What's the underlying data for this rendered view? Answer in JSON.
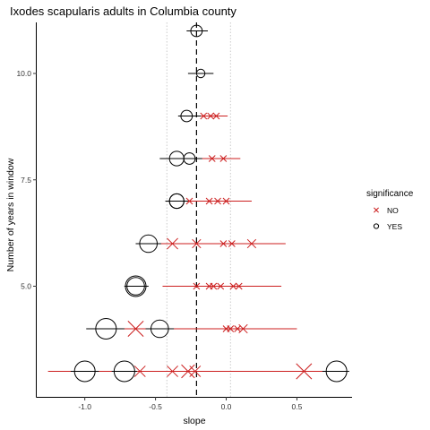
{
  "chart_data": {
    "type": "scatter",
    "title": "Ixodes scapularis adults in Columbia county",
    "xlabel": "slope",
    "ylabel": "Number of years in window",
    "xlim": [
      -1.34,
      0.89
    ],
    "ylim": [
      2.4,
      11.2
    ],
    "x_ticks": [
      -1.0,
      -0.5,
      0.0,
      0.5
    ],
    "x_tick_labels": [
      "-1.0",
      "-0.5",
      "0.0",
      "0.5"
    ],
    "y_ticks": [
      5.0,
      7.5,
      10.0
    ],
    "y_tick_labels": [
      "5.0",
      "7.5",
      "10.0"
    ],
    "grid": false,
    "reference_line": {
      "x": -0.21,
      "style": "dashed"
    },
    "guide_lines": {
      "x": [
        -0.42,
        0.03
      ],
      "style": "dotted"
    },
    "legend": {
      "title": "significance",
      "position": "right",
      "entries": [
        {
          "label": "NO",
          "marker": "cross",
          "color": "#cc1f1f"
        },
        {
          "label": "YES",
          "marker": "circle",
          "color": "#000000"
        }
      ]
    },
    "series": [
      {
        "name": "NO",
        "marker": "cross",
        "color": "#cc1f1f",
        "points": [
          {
            "y": 3,
            "x": -0.61,
            "lo": -1.26,
            "hi": 0.05,
            "size": 3
          },
          {
            "y": 3,
            "x": -0.38,
            "lo": -0.98,
            "hi": 0.24,
            "size": 3
          },
          {
            "y": 3,
            "x": -0.27,
            "lo": -0.84,
            "hi": 0.31,
            "size": 4
          },
          {
            "y": 3,
            "x": -0.22,
            "lo": -0.8,
            "hi": 0.36,
            "size": 3
          },
          {
            "y": 3,
            "x": 0.55,
            "lo": 0.26,
            "hi": 0.84,
            "size": 5
          },
          {
            "y": 4,
            "x": -0.64,
            "lo": -0.96,
            "hi": -0.32,
            "size": 5
          },
          {
            "y": 4,
            "x": 0.0,
            "lo": -0.37,
            "hi": 0.37,
            "size": 1
          },
          {
            "y": 4,
            "x": 0.03,
            "lo": -0.35,
            "hi": 0.41,
            "size": 1
          },
          {
            "y": 4,
            "x": 0.08,
            "lo": -0.29,
            "hi": 0.46,
            "size": 1
          },
          {
            "y": 4,
            "x": 0.12,
            "lo": -0.26,
            "hi": 0.5,
            "size": 2
          },
          {
            "y": 5,
            "x": -0.21,
            "lo": -0.45,
            "hi": 0.03,
            "size": 1
          },
          {
            "y": 5,
            "x": -0.12,
            "lo": -0.42,
            "hi": 0.18,
            "size": 1
          },
          {
            "y": 5,
            "x": -0.09,
            "lo": -0.37,
            "hi": 0.2,
            "size": 1
          },
          {
            "y": 5,
            "x": -0.04,
            "lo": -0.35,
            "hi": 0.28,
            "size": 1
          },
          {
            "y": 5,
            "x": 0.05,
            "lo": -0.25,
            "hi": 0.37,
            "size": 1
          },
          {
            "y": 5,
            "x": 0.09,
            "lo": -0.21,
            "hi": 0.39,
            "size": 1
          },
          {
            "y": 6,
            "x": -0.38,
            "lo": -0.56,
            "hi": -0.19,
            "size": 3
          },
          {
            "y": 6,
            "x": -0.21,
            "lo": -0.41,
            "hi": 0.0,
            "size": 2
          },
          {
            "y": 6,
            "x": -0.02,
            "lo": -0.25,
            "hi": 0.21,
            "size": 1
          },
          {
            "y": 6,
            "x": 0.04,
            "lo": -0.2,
            "hi": 0.28,
            "size": 1
          },
          {
            "y": 6,
            "x": 0.18,
            "lo": -0.08,
            "hi": 0.42,
            "size": 2
          },
          {
            "y": 7,
            "x": -0.26,
            "lo": -0.38,
            "hi": -0.14,
            "size": 1
          },
          {
            "y": 7,
            "x": -0.12,
            "lo": -0.29,
            "hi": 0.05,
            "size": 1
          },
          {
            "y": 7,
            "x": -0.06,
            "lo": -0.23,
            "hi": 0.12,
            "size": 1
          },
          {
            "y": 7,
            "x": 0.0,
            "lo": -0.18,
            "hi": 0.18,
            "size": 1
          },
          {
            "y": 8,
            "x": -0.1,
            "lo": -0.21,
            "hi": 0.02,
            "size": 1
          },
          {
            "y": 8,
            "x": -0.02,
            "lo": -0.13,
            "hi": 0.1,
            "size": 1
          },
          {
            "y": 9,
            "x": -0.16,
            "lo": -0.24,
            "hi": -0.08,
            "size": 1
          },
          {
            "y": 9,
            "x": -0.11,
            "lo": -0.19,
            "hi": -0.03,
            "size": 1
          },
          {
            "y": 9,
            "x": -0.07,
            "lo": -0.15,
            "hi": 0.01,
            "size": 1
          }
        ]
      },
      {
        "name": "YES",
        "marker": "circle",
        "color": "#000000",
        "points": [
          {
            "y": 3,
            "x": -1.0,
            "lo": -1.1,
            "hi": -0.9,
            "size": 5
          },
          {
            "y": 3,
            "x": -0.72,
            "lo": -0.81,
            "hi": -0.63,
            "size": 5
          },
          {
            "y": 3,
            "x": 0.78,
            "lo": 0.68,
            "hi": 0.87,
            "size": 5
          },
          {
            "y": 4,
            "x": -0.85,
            "lo": -0.99,
            "hi": -0.72,
            "size": 5
          },
          {
            "y": 4,
            "x": -0.47,
            "lo": -0.57,
            "hi": -0.37,
            "size": 4
          },
          {
            "y": 5,
            "x": -0.64,
            "lo": -0.72,
            "hi": -0.55,
            "size": 5
          },
          {
            "y": 5,
            "x": -0.64,
            "lo": -0.72,
            "hi": -0.55,
            "size": 4
          },
          {
            "y": 6,
            "x": -0.55,
            "lo": -0.64,
            "hi": -0.46,
            "size": 4
          },
          {
            "y": 7,
            "x": -0.35,
            "lo": -0.43,
            "hi": -0.27,
            "size": 3
          },
          {
            "y": 7,
            "x": -0.35,
            "lo": -0.43,
            "hi": -0.27,
            "size": 3
          },
          {
            "y": 8,
            "x": -0.35,
            "lo": -0.47,
            "hi": -0.23,
            "size": 3
          },
          {
            "y": 8,
            "x": -0.26,
            "lo": -0.36,
            "hi": -0.17,
            "size": 2
          },
          {
            "y": 9,
            "x": -0.28,
            "lo": -0.34,
            "hi": -0.18,
            "size": 2
          },
          {
            "y": 10,
            "x": -0.18,
            "lo": -0.27,
            "hi": -0.09,
            "size": 1
          },
          {
            "y": 11,
            "x": -0.21,
            "lo": -0.28,
            "hi": -0.13,
            "size": 2
          }
        ]
      }
    ]
  }
}
